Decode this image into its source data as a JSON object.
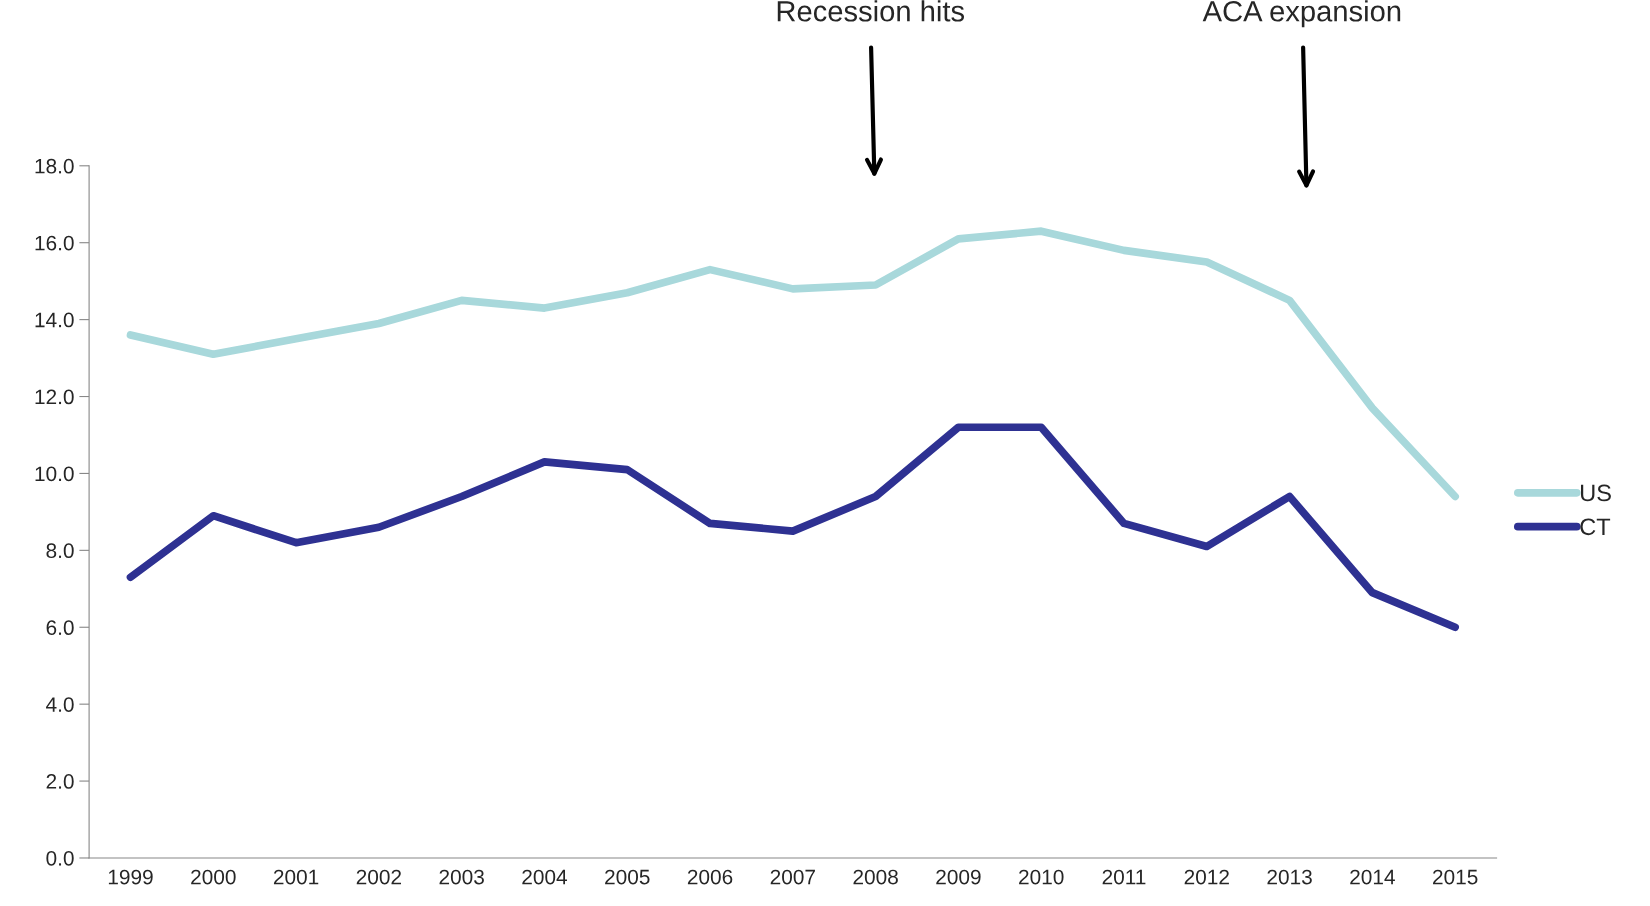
{
  "chart_data": {
    "type": "line",
    "categories": [
      "1999",
      "2000",
      "2001",
      "2002",
      "2003",
      "2004",
      "2005",
      "2006",
      "2007",
      "2008",
      "2009",
      "2010",
      "2011",
      "2012",
      "2013",
      "2014",
      "2015"
    ],
    "series": [
      {
        "name": "US",
        "color": "#a8d8db",
        "values": [
          13.6,
          13.1,
          13.5,
          13.9,
          14.5,
          14.3,
          14.7,
          15.3,
          14.8,
          14.9,
          16.1,
          16.3,
          15.8,
          15.5,
          14.5,
          11.7,
          9.4
        ]
      },
      {
        "name": "CT",
        "color": "#2e3192",
        "values": [
          7.3,
          8.9,
          8.2,
          8.6,
          9.4,
          10.3,
          10.1,
          8.7,
          8.5,
          9.4,
          11.2,
          11.2,
          8.7,
          8.1,
          9.4,
          6.9,
          6.0
        ]
      }
    ],
    "ylim": [
      0,
      18
    ],
    "yticks": [
      {
        "value": 0,
        "label": "0.0"
      },
      {
        "value": 2,
        "label": "2.0"
      },
      {
        "value": 4,
        "label": "4.0"
      },
      {
        "value": 6,
        "label": "6.0"
      },
      {
        "value": 8,
        "label": "8.0"
      },
      {
        "value": 10,
        "label": "10.0"
      },
      {
        "value": 12,
        "label": "12.0"
      },
      {
        "value": 14,
        "label": "14.0"
      },
      {
        "value": 16,
        "label": "16.0"
      },
      {
        "value": 18,
        "label": "18.0"
      }
    ],
    "annotations": [
      "Recession hits",
      "ACA expansion"
    ],
    "legend": "right",
    "grid": false,
    "marker": "none",
    "line_style": "solid"
  }
}
